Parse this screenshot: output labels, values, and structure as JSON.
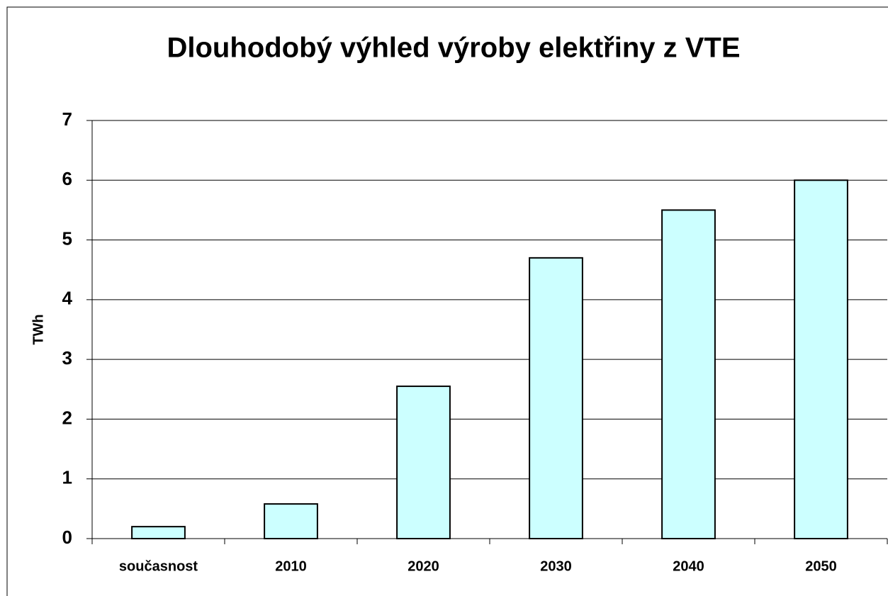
{
  "chart_data": {
    "type": "bar",
    "title": "Dlouhodobý výhled výroby elektřiny z VTE",
    "y_label": "TWh",
    "categories": [
      "současnost",
      "2010",
      "2020",
      "2030",
      "2040",
      "2050"
    ],
    "values": [
      0.2,
      0.58,
      2.55,
      4.7,
      5.5,
      6.0
    ],
    "color": "#ccffff",
    "ylim": [
      0,
      7
    ],
    "yticks": [
      0,
      1,
      2,
      3,
      4,
      5,
      6,
      7
    ],
    "grid": true
  }
}
